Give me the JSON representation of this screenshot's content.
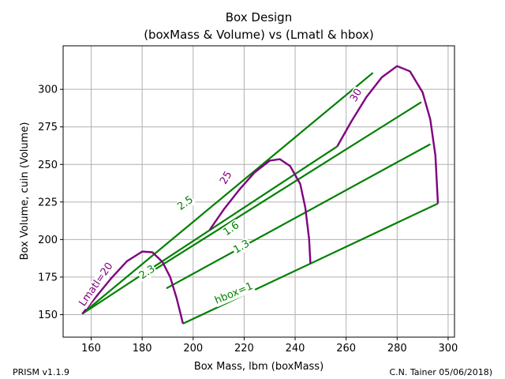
{
  "chart_data": {
    "type": "line",
    "title": "Box Design",
    "subtitle": "(boxMass & Volume) vs (Lmatl & hbox)",
    "xlabel": "Box Mass, lbm (boxMass)",
    "ylabel": "Box Volume, cuin (Volume)",
    "xlim": [
      149,
      302.5
    ],
    "ylim": [
      135,
      329
    ],
    "xticks": [
      160,
      180,
      200,
      220,
      240,
      260,
      280,
      300
    ],
    "yticks": [
      150,
      175,
      200,
      225,
      250,
      275,
      300
    ],
    "grid": true,
    "colors": {
      "hbox": "#008000",
      "lmatl": "#800080"
    },
    "hbox_series": [
      {
        "name": "hbox=1",
        "label": "hbox=1",
        "points": [
          [
            196,
            144
          ],
          [
            296,
            224
          ]
        ]
      },
      {
        "name": "1.3",
        "label": "1.3",
        "points": [
          [
            189.5,
            167.5
          ],
          [
            293,
            263.5
          ]
        ]
      },
      {
        "name": "1.6",
        "label": "1.6",
        "points": [
          [
            184,
            179
          ],
          [
            289.5,
            291.5
          ]
        ]
      },
      {
        "name": "2.3",
        "label": "2.3",
        "points": [
          [
            156.5,
            150.5
          ],
          [
            256.5,
            262
          ]
        ]
      },
      {
        "name": "2.5",
        "label": "2.5",
        "points": [
          [
            156.5,
            150.5
          ],
          [
            270.5,
            311
          ]
        ]
      }
    ],
    "lmatl_series": [
      {
        "name": "Lmatl=20",
        "label": "Lmatl=20",
        "points": [
          [
            156.5,
            150.5
          ],
          [
            162,
            162
          ],
          [
            168,
            174.5
          ],
          [
            174,
            185.5
          ],
          [
            180,
            192
          ],
          [
            184,
            191.5
          ],
          [
            188,
            185
          ],
          [
            191,
            175
          ],
          [
            193.5,
            161
          ],
          [
            195,
            151
          ],
          [
            196,
            144
          ]
        ]
      },
      {
        "name": "25",
        "label": "25",
        "points": [
          [
            206.5,
            206.5
          ],
          [
            212,
            220
          ],
          [
            218,
            233
          ],
          [
            224,
            244.5
          ],
          [
            230,
            252.5
          ],
          [
            234,
            253.5
          ],
          [
            238,
            249
          ],
          [
            242,
            237
          ],
          [
            244,
            221
          ],
          [
            245.5,
            200
          ],
          [
            246,
            184
          ]
        ]
      },
      {
        "name": "30",
        "label": "30",
        "points": [
          [
            256.5,
            262
          ],
          [
            262,
            278.5
          ],
          [
            268,
            295
          ],
          [
            274,
            308
          ],
          [
            280,
            315.5
          ],
          [
            285,
            312
          ],
          [
            290,
            298
          ],
          [
            293,
            280
          ],
          [
            295,
            256
          ],
          [
            296,
            224
          ]
        ]
      }
    ],
    "labels": [
      {
        "text": "hbox=1",
        "series": "hbox=1",
        "x": 216,
        "y": 164,
        "color": "#008000",
        "angle": -23
      },
      {
        "text": "1.3",
        "series": "1.3",
        "x": 219,
        "y": 195,
        "color": "#008000",
        "angle": -30
      },
      {
        "text": "1.6",
        "series": "1.6",
        "x": 215,
        "y": 207,
        "color": "#008000",
        "angle": -35
      },
      {
        "text": "2.3",
        "series": "2.3",
        "x": 182,
        "y": 178,
        "color": "#008000",
        "angle": -33
      },
      {
        "text": "2.5",
        "series": "2.5",
        "x": 197,
        "y": 224,
        "color": "#008000",
        "angle": -35
      },
      {
        "text": "Lmatl=20",
        "series": "Lmatl=20",
        "x": 162,
        "y": 170,
        "color": "#800080",
        "angle": -55
      },
      {
        "text": "25",
        "series": "25",
        "x": 213,
        "y": 241,
        "color": "#800080",
        "angle": -60
      },
      {
        "text": "30",
        "series": "30",
        "x": 264,
        "y": 296,
        "color": "#800080",
        "angle": -60
      }
    ]
  },
  "footer": {
    "left": "PRISM v1.1.9",
    "right": "C.N. Tainer 05/06/2018)"
  }
}
